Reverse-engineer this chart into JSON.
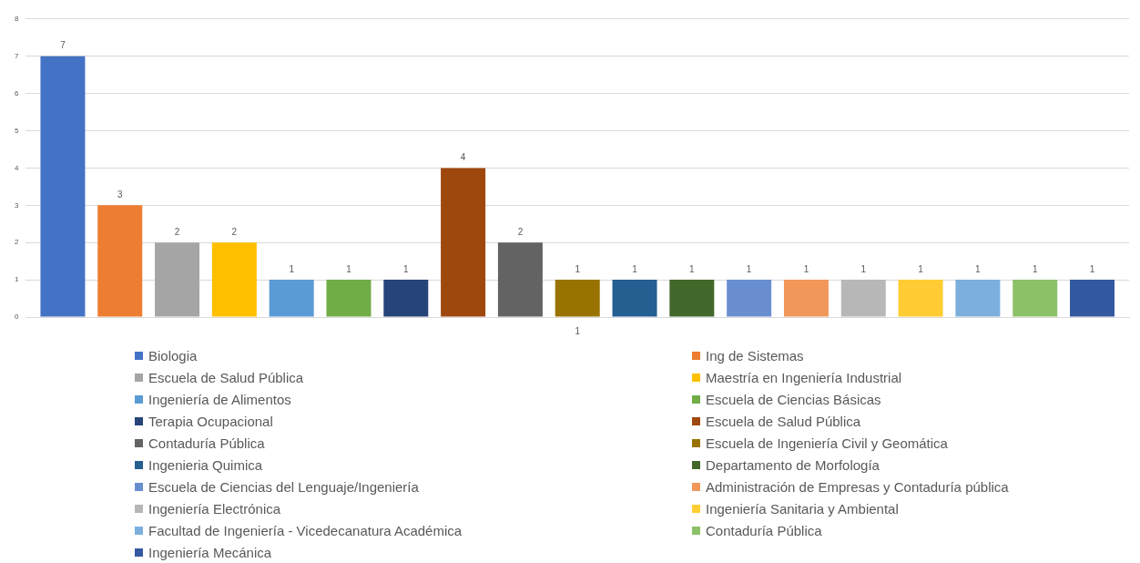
{
  "chart_data": {
    "type": "bar",
    "categories": [
      "1"
    ],
    "ylim": [
      0,
      8
    ],
    "yticks": [
      0,
      1,
      2,
      3,
      4,
      5,
      6,
      7,
      8
    ],
    "grid": "y",
    "legend": "bottom",
    "data_labels": true,
    "series": [
      {
        "name": "Biologia",
        "color": "#4472c4",
        "values": [
          7
        ]
      },
      {
        "name": "Ing de Sistemas",
        "color": "#ed7d31",
        "values": [
          3
        ]
      },
      {
        "name": "Escuela de Salud Pública",
        "color": "#a5a5a5",
        "values": [
          2
        ]
      },
      {
        "name": "Maestría en Ingeniería Industrial",
        "color": "#ffc000",
        "values": [
          2
        ]
      },
      {
        "name": "Ingeniería de Alimentos",
        "color": "#5b9bd5",
        "values": [
          1
        ]
      },
      {
        "name": "Escuela de Ciencias Básicas",
        "color": "#70ad47",
        "values": [
          1
        ]
      },
      {
        "name": "Terapia Ocupacional",
        "color": "#264478",
        "values": [
          1
        ]
      },
      {
        "name": "Escuela de Salud Pública",
        "color": "#9e480e",
        "values": [
          4
        ]
      },
      {
        "name": "Contaduría Pública",
        "color": "#636363",
        "values": [
          2
        ]
      },
      {
        "name": "Escuela de Ingeniería Civil y Geomática",
        "color": "#997300",
        "values": [
          1
        ]
      },
      {
        "name": "Ingenieria Quimica",
        "color": "#255e91",
        "values": [
          1
        ]
      },
      {
        "name": "Departamento de Morfología",
        "color": "#43682b",
        "values": [
          1
        ]
      },
      {
        "name": "Escuela de Ciencias del Lenguaje/Ingeniería",
        "color": "#698ed0",
        "values": [
          1
        ]
      },
      {
        "name": "Administración de Empresas y Contaduría pública",
        "color": "#f1975a",
        "values": [
          1
        ]
      },
      {
        "name": "Ingeniería Electrónica",
        "color": "#b7b7b7",
        "values": [
          1
        ]
      },
      {
        "name": "Ingeniería Sanitaria y Ambiental",
        "color": "#ffcd33",
        "values": [
          1
        ]
      },
      {
        "name": "Facultad de Ingeniería - Vicedecanatura Académica",
        "color": "#7cafdd",
        "values": [
          1
        ]
      },
      {
        "name": "Contaduría Pública",
        "color": "#8cc168",
        "values": [
          1
        ]
      },
      {
        "name": "Ingeniería Mecánica",
        "color": "#335aa1",
        "values": [
          1
        ]
      }
    ]
  }
}
